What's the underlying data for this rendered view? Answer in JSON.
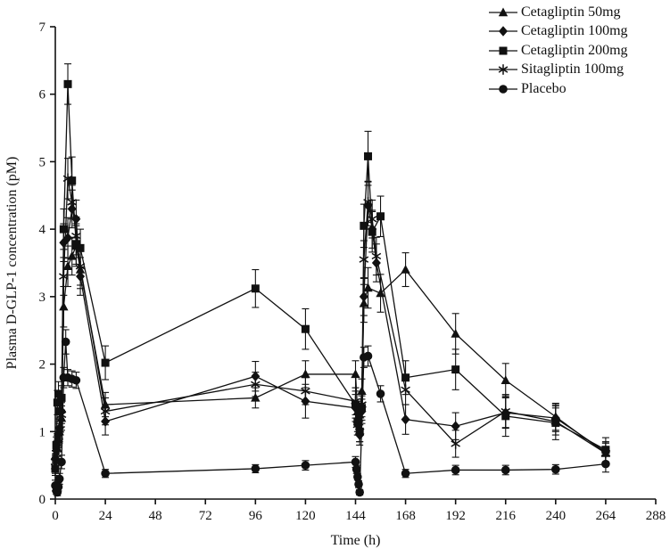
{
  "figure": {
    "background": "#ffffff",
    "ink": "#111111"
  },
  "chart_data": {
    "type": "line",
    "title": "",
    "xlabel": "Time (h)",
    "ylabel": "Plasma D-GLP-1 concentration (pM)",
    "xlim": [
      0,
      288
    ],
    "ylim": [
      0,
      7
    ],
    "xticks": [
      0,
      24,
      48,
      72,
      96,
      120,
      144,
      168,
      192,
      216,
      240,
      264,
      288
    ],
    "yticks": [
      0,
      1,
      2,
      3,
      4,
      5,
      6,
      7
    ],
    "grid": false,
    "legend_position": "top-right",
    "error_bars": true,
    "series": [
      {
        "name": "Cetagliptin 50mg",
        "marker": "triangle",
        "color": "#111111",
        "x": [
          0,
          0.5,
          1,
          1.5,
          2,
          3,
          4,
          6,
          8,
          10,
          12,
          24,
          96,
          120,
          144,
          145,
          146,
          147,
          148,
          150,
          156,
          168,
          192,
          216,
          240,
          264
        ],
        "y": [
          0.5,
          0.62,
          0.75,
          0.88,
          1.0,
          1.2,
          2.85,
          3.45,
          3.6,
          3.75,
          3.4,
          1.4,
          1.5,
          1.85,
          1.85,
          1.3,
          1.25,
          1.6,
          2.9,
          3.13,
          3.05,
          3.4,
          2.45,
          1.76,
          1.22,
          0.68
        ],
        "err": [
          0.12,
          0.12,
          0.12,
          0.12,
          0.15,
          0.18,
          0.3,
          0.3,
          0.28,
          0.3,
          0.28,
          0.18,
          0.15,
          0.2,
          0.2,
          0.15,
          0.15,
          0.18,
          0.28,
          0.3,
          0.28,
          0.25,
          0.3,
          0.25,
          0.2,
          0.15
        ]
      },
      {
        "name": "Cetagliptin 100mg",
        "marker": "diamond",
        "color": "#111111",
        "x": [
          0,
          0.5,
          1,
          1.5,
          2,
          3,
          4,
          6,
          8,
          10,
          12,
          24,
          96,
          120,
          144,
          145,
          146,
          147,
          148,
          150,
          152,
          154,
          168,
          192,
          216,
          240,
          264
        ],
        "y": [
          0.6,
          0.72,
          0.85,
          0.95,
          1.05,
          1.3,
          3.8,
          3.87,
          4.3,
          4.15,
          3.3,
          1.15,
          1.82,
          1.45,
          1.35,
          1.1,
          0.95,
          1.3,
          3.0,
          4.35,
          4.0,
          3.5,
          1.18,
          1.08,
          1.28,
          1.2,
          0.7
        ],
        "err": [
          0.12,
          0.12,
          0.12,
          0.12,
          0.15,
          0.18,
          0.28,
          0.3,
          0.28,
          0.28,
          0.28,
          0.2,
          0.22,
          0.25,
          0.2,
          0.15,
          0.15,
          0.18,
          0.28,
          0.3,
          0.28,
          0.28,
          0.22,
          0.2,
          0.22,
          0.2,
          0.15
        ]
      },
      {
        "name": "Cetagliptin 200mg",
        "marker": "square",
        "color": "#111111",
        "x": [
          0,
          0.5,
          1,
          1.5,
          2,
          3,
          4,
          6,
          8,
          10,
          12,
          24,
          96,
          120,
          144,
          145,
          146,
          147,
          148,
          150,
          152,
          156,
          168,
          192,
          216,
          240,
          264
        ],
        "y": [
          0.45,
          0.8,
          1.43,
          1.56,
          1.3,
          1.5,
          4.0,
          6.15,
          4.72,
          3.78,
          3.72,
          2.02,
          3.12,
          2.52,
          1.4,
          1.15,
          1.0,
          1.35,
          4.05,
          5.08,
          3.96,
          4.19,
          1.8,
          1.92,
          1.23,
          1.13,
          0.73
        ],
        "err": [
          0.1,
          0.12,
          0.18,
          0.18,
          0.18,
          0.18,
          0.3,
          0.3,
          0.35,
          0.3,
          0.28,
          0.25,
          0.28,
          0.3,
          0.2,
          0.15,
          0.15,
          0.18,
          0.32,
          0.37,
          0.3,
          0.3,
          0.25,
          0.3,
          0.3,
          0.25,
          0.18
        ]
      },
      {
        "name": "Sitagliptin 100mg",
        "marker": "asterisk",
        "color": "#111111",
        "x": [
          0,
          0.5,
          1,
          1.5,
          2,
          3,
          4,
          6,
          8,
          10,
          12,
          24,
          96,
          120,
          144,
          145,
          146,
          147,
          148,
          150,
          152,
          154,
          168,
          192,
          216,
          240,
          264
        ],
        "y": [
          0.55,
          0.68,
          0.82,
          0.93,
          1.03,
          1.25,
          3.3,
          4.75,
          4.4,
          3.9,
          3.45,
          1.3,
          1.7,
          1.6,
          1.45,
          1.1,
          1.0,
          1.4,
          3.55,
          4.4,
          4.15,
          3.6,
          1.62,
          0.82,
          1.3,
          1.15,
          0.68
        ],
        "err": [
          0.12,
          0.12,
          0.12,
          0.12,
          0.15,
          0.18,
          0.28,
          0.3,
          0.25,
          0.28,
          0.28,
          0.2,
          0.18,
          0.2,
          0.2,
          0.15,
          0.15,
          0.18,
          0.28,
          0.3,
          0.28,
          0.28,
          0.22,
          0.2,
          0.25,
          0.2,
          0.15
        ]
      },
      {
        "name": "Placebo",
        "marker": "circle",
        "color": "#111111",
        "x": [
          0,
          0.5,
          1,
          1.5,
          2,
          3,
          4,
          5,
          6,
          8,
          10,
          24,
          96,
          120,
          144,
          144.5,
          145,
          145.5,
          146,
          148,
          150,
          156,
          168,
          192,
          216,
          240,
          264
        ],
        "y": [
          0.2,
          0.12,
          0.1,
          0.18,
          0.3,
          0.55,
          1.8,
          2.33,
          1.8,
          1.78,
          1.76,
          0.38,
          0.45,
          0.5,
          0.55,
          0.44,
          0.33,
          0.22,
          0.1,
          2.1,
          2.12,
          1.56,
          0.38,
          0.43,
          0.43,
          0.44,
          0.52
        ],
        "err": [
          0.08,
          0.05,
          0.05,
          0.06,
          0.08,
          0.1,
          0.15,
          0.18,
          0.12,
          0.12,
          0.12,
          0.06,
          0.06,
          0.07,
          0.08,
          0.06,
          0.05,
          0.05,
          0.04,
          0.15,
          0.15,
          0.12,
          0.06,
          0.07,
          0.07,
          0.07,
          0.12
        ]
      }
    ]
  },
  "legend": {
    "items": [
      {
        "label": "Cetagliptin 50mg"
      },
      {
        "label": "Cetagliptin 100mg"
      },
      {
        "label": "Cetagliptin 200mg"
      },
      {
        "label": "Sitagliptin 100mg"
      },
      {
        "label": "Placebo"
      }
    ]
  }
}
